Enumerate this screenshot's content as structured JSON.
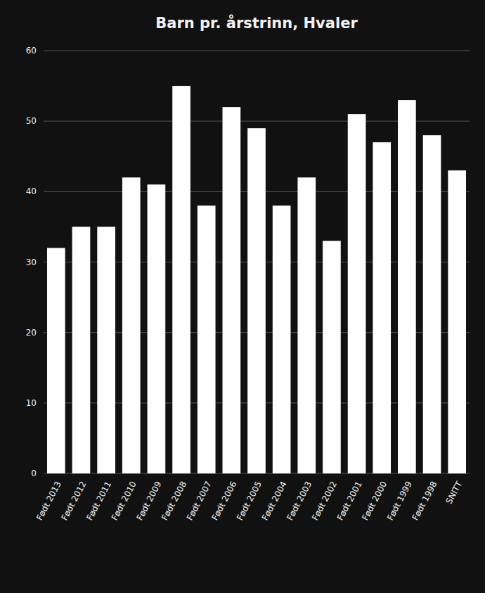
{
  "chart_data": {
    "type": "bar",
    "title": "Barn pr. årstrinn, Hvaler",
    "categories": [
      "Født 2013",
      "Født 2012",
      "Født 2011",
      "Født 2010",
      "Født 2009",
      "Født 2008",
      "Født 2007",
      "Født 2006",
      "Født 2005",
      "Født 2004",
      "Født 2003",
      "Født 2002",
      "Født 2001",
      "Født 2000",
      "Født 1999",
      "Født 1998",
      "SNITT"
    ],
    "values": [
      32,
      35,
      35,
      42,
      41,
      55,
      38,
      52,
      49,
      38,
      42,
      33,
      51,
      47,
      53,
      48,
      43
    ],
    "color": "#ffffff",
    "ylim": [
      0,
      60
    ],
    "yticks": [
      0,
      10,
      20,
      30,
      40,
      50,
      60
    ],
    "grid": true
  }
}
